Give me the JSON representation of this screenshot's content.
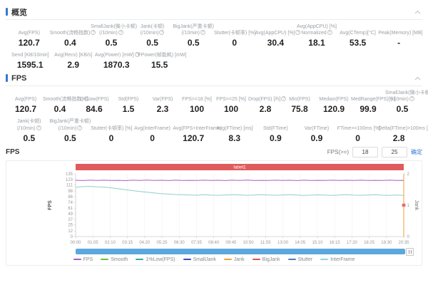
{
  "colors": {
    "accent": "#3577d4",
    "banner": "#e05c5c",
    "scrollbar": "#5ca8dd"
  },
  "overview": {
    "title": "概览",
    "rows": [
      {
        "full": true,
        "cells": [
          {
            "label": "Avg(FPS)",
            "value": "120.7"
          },
          {
            "label": "Smooth(流畅指数)",
            "value": "0.4",
            "info": true
          },
          {
            "label": "SmallJank(微小卡顿)",
            "label2": "(/10min)",
            "value": "0.5",
            "info": true
          },
          {
            "label": "Jank(卡顿)",
            "label2": "(/10min)",
            "value": "0.5",
            "info": true
          },
          {
            "label": "BigJank(严重卡顿)",
            "label2": "(/10min)",
            "value": "0.5",
            "info": true
          },
          {
            "label": "Stutter(卡顿率) [%]",
            "value": "0"
          },
          {
            "label": "Avg(AppCPU) [%]",
            "value": "30.4",
            "info": true
          },
          {
            "label": "Avg(AppCPU) [%]",
            "label2": "Normalized",
            "value": "18.1",
            "info": true
          },
          {
            "label": "Avg(CTemp)[°C]",
            "value": "53.5"
          },
          {
            "label": "Peak(Memory) [MB]",
            "value": "-"
          }
        ]
      },
      {
        "full": false,
        "cells": [
          {
            "label": "Send [KB/10min]",
            "value": "1595.1"
          },
          {
            "label": "Avg(Recv) [KB/s]",
            "value": "2.9"
          },
          {
            "label": "Avg(Power) [mW]",
            "value": "1870.3",
            "info": true
          },
          {
            "label": "FPower(帧能耗) [mW]",
            "value": "15.5"
          }
        ]
      }
    ]
  },
  "fps_section": {
    "title": "FPS",
    "rows": [
      {
        "full": true,
        "cells": [
          {
            "label": "Avg(FPS)",
            "value": "120.7"
          },
          {
            "label": "Smooth(流畅指数)",
            "value": "0.4",
            "info": true
          },
          {
            "label": "1%Low(FPS)",
            "value": "84.6"
          },
          {
            "label": "Std(FPS)",
            "value": "1.5"
          },
          {
            "label": "Var(FPS)",
            "value": "2.3"
          },
          {
            "label": "FPS>=18 [%]",
            "value": "100"
          },
          {
            "label": "FPS>=25 [%]",
            "value": "100"
          },
          {
            "label": "Drop(FPS) [/h]",
            "value": "2.8",
            "info": true
          },
          {
            "label": "Min(FPS)",
            "value": "75.8"
          },
          {
            "label": "Median(FPS)",
            "value": "120.9"
          },
          {
            "label": "MedRange(FPS)[%]",
            "value": "99.9"
          },
          {
            "label": "SmallJank(微小卡顿)",
            "label2": "(/10min)",
            "value": "0.5",
            "info": true
          }
        ]
      },
      {
        "full": true,
        "cells": [
          {
            "label": "Jank(卡顿)",
            "label2": "(/10min)",
            "value": "0.5",
            "info": true
          },
          {
            "label": "BigJank(严重卡顿)",
            "label2": "(/10min)",
            "value": "0.5",
            "info": true
          },
          {
            "label": "Stutter(卡顿率) [%]",
            "value": "0"
          },
          {
            "label": "Avg(InterFrame)",
            "value": "0"
          },
          {
            "label": "Avg(FPS+InterFrame)",
            "value": "120.7"
          },
          {
            "label": "Avg(FTime) [ms]",
            "value": "8.3"
          },
          {
            "label": "Std(FTime)",
            "value": "0.9"
          },
          {
            "label": "Var(FTime)",
            "value": "0.9"
          },
          {
            "label": "FTime>=100ms [%]",
            "value": "0"
          },
          {
            "label": "Delta(FTime)>100ms [/h]",
            "value": "2.8",
            "info": true
          }
        ]
      }
    ]
  },
  "chart_panel": {
    "title": "FPS",
    "threshold_label": "FPS(>=)",
    "threshold_inputs": [
      "18",
      "25"
    ],
    "confirm_label": "确定"
  },
  "chart_data": {
    "type": "line",
    "title": "FPS timeline",
    "banner_label": "label1",
    "banner_color": "#e05c5c",
    "y_left": {
      "label": "FPS",
      "max": 135,
      "ticks": [
        0,
        12,
        25,
        37,
        49,
        61,
        74,
        86,
        98,
        111,
        123,
        135
      ]
    },
    "y_right": {
      "label": "Jank",
      "max": 2,
      "ticks": [
        0,
        1,
        2
      ]
    },
    "x_ticks": [
      "00:00",
      "01:05",
      "02:10",
      "03:15",
      "04:20",
      "05:25",
      "06:30",
      "07:35",
      "08:40",
      "09:45",
      "10:50",
      "11:55",
      "13:00",
      "14:05",
      "15:10",
      "16:15",
      "17:20",
      "18:25",
      "19:30",
      "20:35"
    ],
    "grid": "vertical",
    "legend_position": "bottom",
    "series": [
      {
        "name": "FPS",
        "color": "#b05bc4",
        "axis": "left",
        "end_drop": true,
        "values": [
          121.2,
          120.6,
          121.4,
          120.9,
          121.3,
          120.7,
          121.1,
          120.5,
          121.3,
          120.8,
          121.5,
          120.9,
          121.2,
          120.6,
          121.3,
          120.8,
          121.1,
          120.7,
          121.4,
          120.9,
          121.2,
          120.6,
          121.3,
          120.8,
          121.5,
          120.9,
          121.1,
          120.7,
          121.3,
          120.8,
          121.2,
          120.6,
          121.4,
          120.9,
          121.1,
          120.7,
          121.3,
          120.8,
          121.2,
          120.9,
          121.4,
          120.7,
          121.1,
          120.8,
          121.3,
          120.9,
          121.0,
          0
        ]
      },
      {
        "name": "1%Low(FPS)",
        "color": "#8fcfc9",
        "axis": "left",
        "values": [
          106,
          107.5,
          108,
          107,
          106.5,
          105,
          103,
          101,
          99,
          97,
          95.5,
          94,
          92.5,
          91.5,
          90.5,
          90,
          89.5,
          89,
          90,
          89.2,
          88.8,
          89.5,
          90.2,
          89.6,
          88.9,
          89.3,
          90,
          89.4,
          88.8,
          89.6,
          90.1,
          89.3,
          88.7,
          89.2,
          89.8,
          89.1,
          88.6,
          89.4,
          90,
          89.2,
          88.8,
          89.5,
          89.9,
          89.0,
          88.5,
          89.3,
          88.8
        ]
      }
    ],
    "events": [
      {
        "name": "Jank",
        "x": 1,
        "value": 1,
        "color": "#d9534f",
        "line_color": "#e8a33d"
      }
    ],
    "legend": [
      {
        "label": "FPS",
        "color": "#b05bc4"
      },
      {
        "label": "Smooth",
        "color": "#67c23a"
      },
      {
        "label": "1%Low(FPS)",
        "color": "#3ba89f"
      },
      {
        "label": "SmallJank",
        "color": "#3b4db0"
      },
      {
        "label": "Jank",
        "color": "#e8a33d"
      },
      {
        "label": "BigJank",
        "color": "#d95550"
      },
      {
        "label": "Stutter",
        "color": "#4a7ebb"
      },
      {
        "label": "InterFrame",
        "color": "#8fd5e8"
      }
    ]
  }
}
